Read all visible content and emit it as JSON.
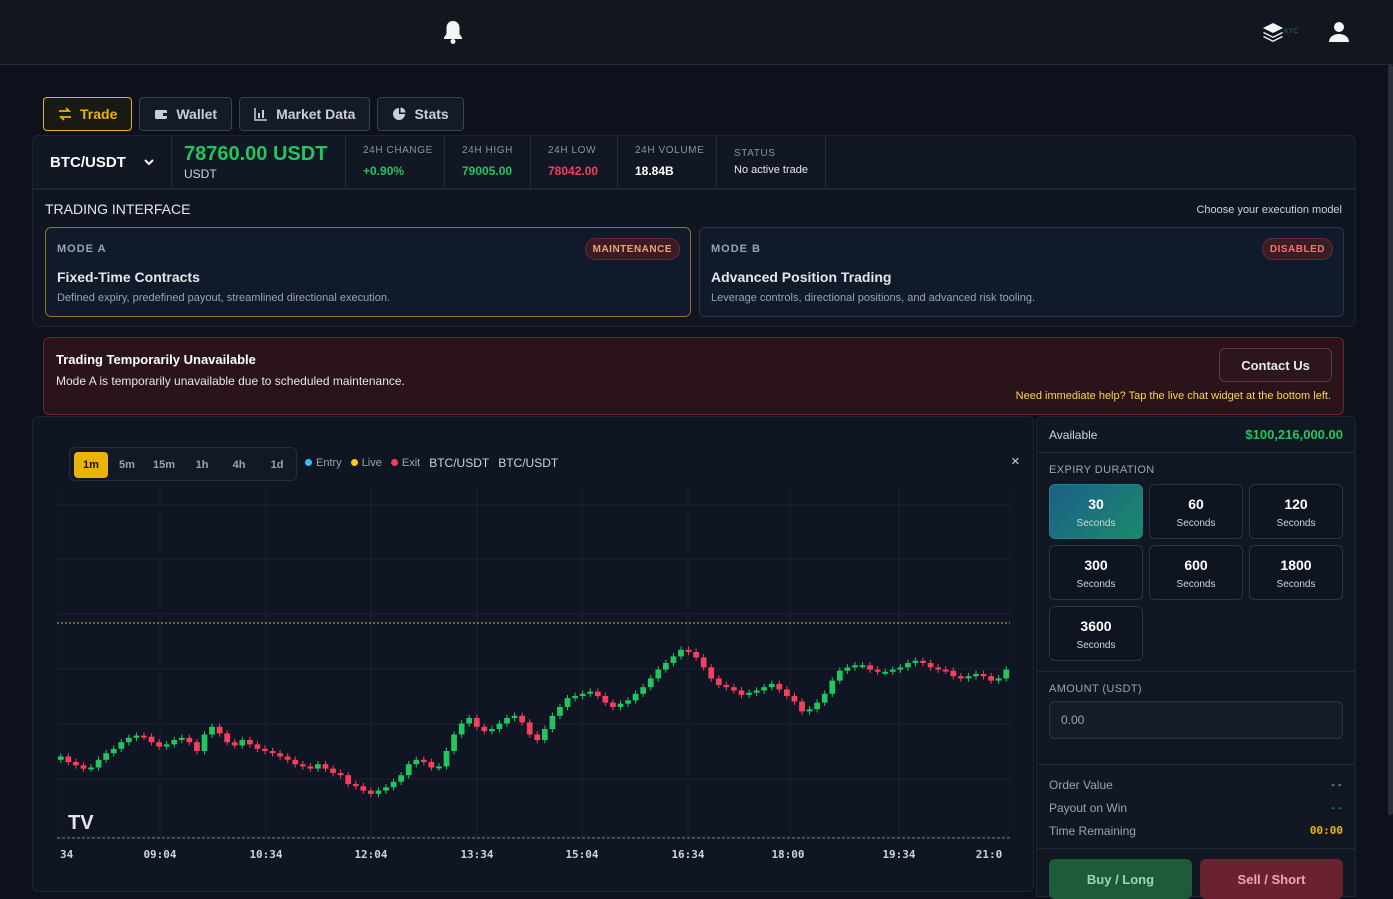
{
  "header": {
    "kyc_label": "KYC"
  },
  "tabs": [
    {
      "label": "Trade"
    },
    {
      "label": "Wallet"
    },
    {
      "label": "Market Data"
    },
    {
      "label": "Stats"
    }
  ],
  "ticker": {
    "pair": "BTC/USDT",
    "price": "78760.00 USDT",
    "price_unit": "USDT",
    "change_label": "24H CHANGE",
    "change_value": "+0.90%",
    "high_label": "24H HIGH",
    "high_value": "79005.00",
    "low_label": "24H LOW",
    "low_value": "78042.00",
    "volume_label": "24H VOLUME",
    "volume_value": "18.84B",
    "status_label": "STATUS",
    "status_value": "No active trade",
    "colors": {
      "up": "#22c55e",
      "down": "#f43f5e"
    }
  },
  "interface": {
    "title": "TRADING INTERFACE",
    "subtitle": "Choose your execution model",
    "mode_a": {
      "tag": "MODE A",
      "badge": "MAINTENANCE",
      "name": "Fixed-Time Contracts",
      "desc": "Defined expiry, predefined payout, streamlined directional execution."
    },
    "mode_b": {
      "tag": "MODE B",
      "badge": "DISABLED",
      "name": "Advanced Position Trading",
      "desc": "Leverage controls, directional positions, and advanced risk tooling."
    }
  },
  "alert": {
    "title": "Trading Temporarily Unavailable",
    "message": "Mode A is temporarily unavailable due to scheduled maintenance.",
    "contact_label": "Contact Us",
    "help": "Need immediate help? Tap the live chat widget at the bottom left."
  },
  "chart": {
    "timeframes": [
      "1m",
      "5m",
      "15m",
      "1h",
      "4h",
      "1d"
    ],
    "active_timeframe": "1m",
    "legend": {
      "entry": "Entry",
      "live": "Live",
      "exit": "Exit",
      "symbol1": "BTC/USDT",
      "symbol2": "BTC/USDT"
    },
    "close_label": "×",
    "watermark": "TV",
    "x_ticks": [
      "34",
      "09:04",
      "10:34",
      "12:04",
      "13:34",
      "15:04",
      "16:34",
      "18:00",
      "19:34",
      "21:0"
    ]
  },
  "chart_data": {
    "type": "candlestick",
    "series": [
      {
        "values": [
          55,
          50,
          47,
          44,
          45,
          52,
          58,
          62,
          68,
          72,
          74,
          73,
          68,
          64,
          66,
          70,
          72,
          68,
          60,
          75,
          82,
          76,
          68,
          65,
          70,
          66,
          62,
          60,
          58,
          55,
          52,
          48,
          46,
          44,
          48,
          44,
          40,
          38,
          30,
          28,
          24,
          21,
          24,
          27,
          32,
          38,
          48,
          52,
          50,
          45,
          46,
          60,
          75,
          85,
          90,
          82,
          78,
          80,
          85,
          90,
          92,
          86,
          75,
          70,
          80,
          92,
          100,
          108,
          110,
          112,
          114,
          110,
          104,
          100,
          103,
          106,
          112,
          118,
          126,
          134,
          140,
          146,
          152,
          150,
          145,
          136,
          126,
          120,
          118,
          115,
          111,
          113,
          115,
          118,
          121,
          116,
          110,
          105,
          96,
          98,
          104,
          112,
          124,
          133,
          136,
          138,
          138,
          134,
          132,
          132,
          134,
          136,
          140,
          142,
          140,
          136,
          134,
          133,
          128,
          126,
          128,
          130,
          128,
          124,
          126,
          134
        ]
      }
    ],
    "live_price_line": 78760
  },
  "side": {
    "available_label": "Available",
    "available_value": "$100,216,000.00",
    "expiry_label": "EXPIRY DURATION",
    "durations": [
      {
        "n": "30",
        "u": "Seconds"
      },
      {
        "n": "60",
        "u": "Seconds"
      },
      {
        "n": "120",
        "u": "Seconds"
      },
      {
        "n": "300",
        "u": "Seconds"
      },
      {
        "n": "600",
        "u": "Seconds"
      },
      {
        "n": "1800",
        "u": "Seconds"
      },
      {
        "n": "3600",
        "u": "Seconds"
      }
    ],
    "amount_label": "AMOUNT (USDT)",
    "amount_placeholder": "0.00",
    "order_value_label": "Order Value",
    "order_value": "--",
    "payout_label": "Payout on Win",
    "payout_value": "--",
    "time_label": "Time Remaining",
    "time_value": "00:00",
    "buy_label": "Buy / Long",
    "sell_label": "Sell / Short"
  }
}
